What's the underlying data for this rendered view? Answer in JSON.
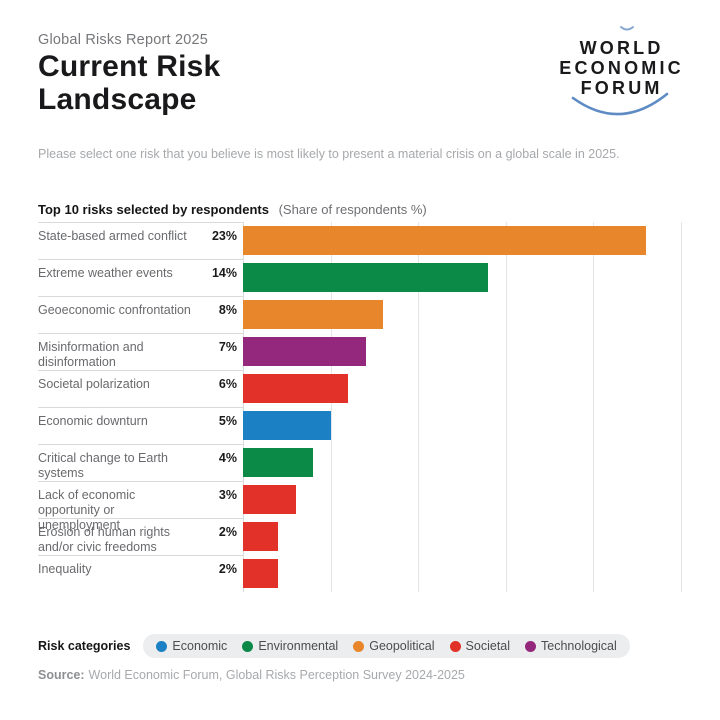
{
  "header": {
    "eyebrow": "Global Risks Report 2025",
    "title_line1": "Current Risk",
    "title_line2": "Landscape",
    "subtitle": "Please select one risk that you believe is most likely to present a material crisis on a global scale in 2025.",
    "logo": {
      "line1": "WORLD",
      "line2": "ECONOMIC",
      "line3": "FORUM",
      "arc_color": "#5E8BC4"
    }
  },
  "chart_header": {
    "title": "Top 10 risks selected by respondents",
    "subtitle": "(Share of respondents %)"
  },
  "chart_data": {
    "type": "bar",
    "orientation": "horizontal",
    "title": "Top 10 risks selected by respondents",
    "unit": "Share of respondents %",
    "xlim": [
      0,
      25
    ],
    "gridline_ticks": [
      5,
      10,
      15,
      20,
      25
    ],
    "grid": true,
    "category_colors": {
      "Economic": "#1B80C4",
      "Environmental": "#0A8A46",
      "Geopolitical": "#E8862B",
      "Societal": "#E23128",
      "Technological": "#93287D"
    },
    "rows": [
      {
        "label": "State-based armed conflict",
        "value": 23,
        "display": "23%",
        "category": "Geopolitical"
      },
      {
        "label": "Extreme weather events",
        "value": 14,
        "display": "14%",
        "category": "Environmental"
      },
      {
        "label": "Geoeconomic confrontation",
        "value": 8,
        "display": "8%",
        "category": "Geopolitical"
      },
      {
        "label": "Misinformation and disinformation",
        "value": 7,
        "display": "7%",
        "category": "Technological"
      },
      {
        "label": "Societal polarization",
        "value": 6,
        "display": "6%",
        "category": "Societal"
      },
      {
        "label": "Economic downturn",
        "value": 5,
        "display": "5%",
        "category": "Economic"
      },
      {
        "label": "Critical change to Earth systems",
        "value": 4,
        "display": "4%",
        "category": "Environmental"
      },
      {
        "label": "Lack of economic opportunity or unemployment",
        "value": 3,
        "display": "3%",
        "category": "Societal"
      },
      {
        "label": "Erosion of human rights and/or civic freedoms",
        "value": 2,
        "display": "2%",
        "category": "Societal"
      },
      {
        "label": "Inequality",
        "value": 2,
        "display": "2%",
        "category": "Societal"
      }
    ]
  },
  "legend": {
    "title": "Risk categories",
    "items": [
      {
        "label": "Economic",
        "category": "Economic"
      },
      {
        "label": "Environmental",
        "category": "Environmental"
      },
      {
        "label": "Geopolitical",
        "category": "Geopolitical"
      },
      {
        "label": "Societal",
        "category": "Societal"
      },
      {
        "label": "Technological",
        "category": "Technological"
      }
    ]
  },
  "source": {
    "prefix": "Source:",
    "text": "World Economic Forum, Global Risks Perception Survey 2024-2025"
  }
}
